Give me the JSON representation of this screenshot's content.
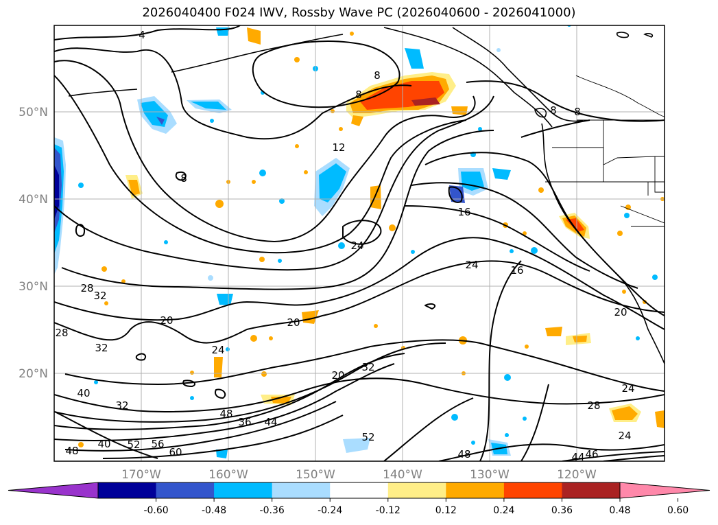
{
  "title": "2026040400 F024 IWV, Rossby Wave PC (2026040600 - 2026041000)",
  "latitude_labels": [
    "50°N",
    "40°N",
    "30°N",
    "20°N"
  ],
  "longitude_labels": [
    "170°W",
    "160°W",
    "150°W",
    "140°W",
    "130°W",
    "120°W"
  ],
  "contour_labels": [
    "4",
    "8",
    "8",
    "8",
    "8",
    "8",
    "12",
    "16",
    "16",
    "20",
    "20",
    "20",
    "20",
    "24",
    "24",
    "24",
    "24",
    "24",
    "28",
    "28",
    "28",
    "32",
    "32",
    "32",
    "32",
    "36",
    "44",
    "48",
    "48",
    "52",
    "56",
    "60",
    "40",
    "46",
    "40",
    "48",
    "52",
    "44"
  ],
  "colorbar": {
    "ticks": [
      "-0.60",
      "-0.48",
      "-0.36",
      "-0.24",
      "-0.12",
      "0.12",
      "0.24",
      "0.36",
      "0.48",
      "0.60"
    ],
    "colors": [
      "#9933cc",
      "#000099",
      "#3355cc",
      "#00bbff",
      "#aaddff",
      "#ffffff",
      "#ffee88",
      "#ffaa00",
      "#ff4400",
      "#aa2222",
      "#ff88aa"
    ]
  }
}
